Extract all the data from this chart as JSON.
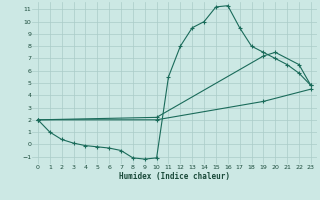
{
  "xlabel": "Humidex (Indice chaleur)",
  "bg_color": "#cce8e4",
  "grid_color": "#aaccc8",
  "line_color": "#1a6b5a",
  "xlim": [
    -0.5,
    23.5
  ],
  "ylim": [
    -1.6,
    11.6
  ],
  "xticks": [
    0,
    1,
    2,
    3,
    4,
    5,
    6,
    7,
    8,
    9,
    10,
    11,
    12,
    13,
    14,
    15,
    16,
    17,
    18,
    19,
    20,
    21,
    22,
    23
  ],
  "yticks": [
    -1,
    0,
    1,
    2,
    3,
    4,
    5,
    6,
    7,
    8,
    9,
    10,
    11
  ],
  "series1_x": [
    0,
    1,
    2,
    3,
    4,
    5,
    6,
    7,
    8,
    9,
    10,
    11,
    12,
    13,
    14,
    15,
    16,
    17,
    18,
    19,
    20,
    21,
    22,
    23
  ],
  "series1_y": [
    2,
    1,
    0.4,
    0.1,
    -0.1,
    -0.2,
    -0.3,
    -0.5,
    -1.1,
    -1.2,
    -1.1,
    5.5,
    8.0,
    9.5,
    10.0,
    11.2,
    11.3,
    9.5,
    8.0,
    7.5,
    7.0,
    6.5,
    5.8,
    4.8
  ],
  "series2_x": [
    0,
    10,
    19,
    20,
    22,
    23
  ],
  "series2_y": [
    2,
    2.2,
    7.2,
    7.5,
    6.5,
    4.8
  ],
  "series3_x": [
    0,
    10,
    19,
    23
  ],
  "series3_y": [
    2,
    2.0,
    3.5,
    4.5
  ]
}
